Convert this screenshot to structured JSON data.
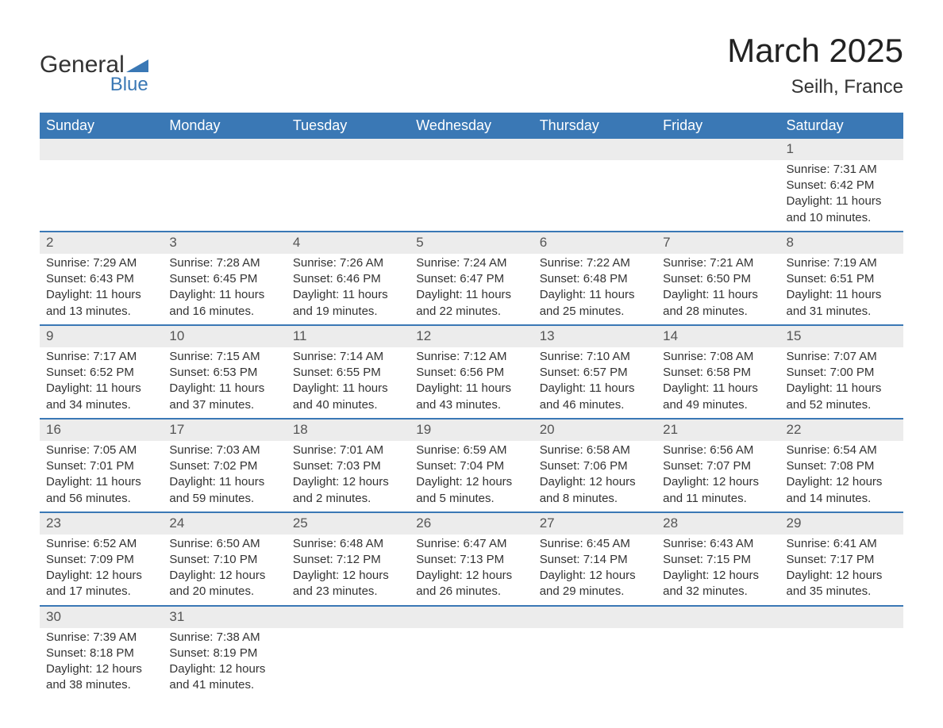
{
  "logo": {
    "text_general": "General",
    "text_blue": "Blue",
    "triangle_color": "#3a78b5"
  },
  "header": {
    "title": "March 2025",
    "subtitle": "Seilh, France"
  },
  "colors": {
    "header_bg": "#3a78b5",
    "header_text": "#ffffff",
    "daynum_bg": "#ececec",
    "border": "#3a78b5",
    "body_text": "#333333",
    "page_bg": "#ffffff"
  },
  "fonts": {
    "title_size_pt": 42,
    "subtitle_size_pt": 24,
    "dayhead_size_pt": 18,
    "cell_size_pt": 15,
    "family": "Arial"
  },
  "calendar": {
    "day_headers": [
      "Sunday",
      "Monday",
      "Tuesday",
      "Wednesday",
      "Thursday",
      "Friday",
      "Saturday"
    ],
    "weeks": [
      [
        null,
        null,
        null,
        null,
        null,
        null,
        {
          "n": "1",
          "sunrise": "Sunrise: 7:31 AM",
          "sunset": "Sunset: 6:42 PM",
          "day1": "Daylight: 11 hours",
          "day2": "and 10 minutes."
        }
      ],
      [
        {
          "n": "2",
          "sunrise": "Sunrise: 7:29 AM",
          "sunset": "Sunset: 6:43 PM",
          "day1": "Daylight: 11 hours",
          "day2": "and 13 minutes."
        },
        {
          "n": "3",
          "sunrise": "Sunrise: 7:28 AM",
          "sunset": "Sunset: 6:45 PM",
          "day1": "Daylight: 11 hours",
          "day2": "and 16 minutes."
        },
        {
          "n": "4",
          "sunrise": "Sunrise: 7:26 AM",
          "sunset": "Sunset: 6:46 PM",
          "day1": "Daylight: 11 hours",
          "day2": "and 19 minutes."
        },
        {
          "n": "5",
          "sunrise": "Sunrise: 7:24 AM",
          "sunset": "Sunset: 6:47 PM",
          "day1": "Daylight: 11 hours",
          "day2": "and 22 minutes."
        },
        {
          "n": "6",
          "sunrise": "Sunrise: 7:22 AM",
          "sunset": "Sunset: 6:48 PM",
          "day1": "Daylight: 11 hours",
          "day2": "and 25 minutes."
        },
        {
          "n": "7",
          "sunrise": "Sunrise: 7:21 AM",
          "sunset": "Sunset: 6:50 PM",
          "day1": "Daylight: 11 hours",
          "day2": "and 28 minutes."
        },
        {
          "n": "8",
          "sunrise": "Sunrise: 7:19 AM",
          "sunset": "Sunset: 6:51 PM",
          "day1": "Daylight: 11 hours",
          "day2": "and 31 minutes."
        }
      ],
      [
        {
          "n": "9",
          "sunrise": "Sunrise: 7:17 AM",
          "sunset": "Sunset: 6:52 PM",
          "day1": "Daylight: 11 hours",
          "day2": "and 34 minutes."
        },
        {
          "n": "10",
          "sunrise": "Sunrise: 7:15 AM",
          "sunset": "Sunset: 6:53 PM",
          "day1": "Daylight: 11 hours",
          "day2": "and 37 minutes."
        },
        {
          "n": "11",
          "sunrise": "Sunrise: 7:14 AM",
          "sunset": "Sunset: 6:55 PM",
          "day1": "Daylight: 11 hours",
          "day2": "and 40 minutes."
        },
        {
          "n": "12",
          "sunrise": "Sunrise: 7:12 AM",
          "sunset": "Sunset: 6:56 PM",
          "day1": "Daylight: 11 hours",
          "day2": "and 43 minutes."
        },
        {
          "n": "13",
          "sunrise": "Sunrise: 7:10 AM",
          "sunset": "Sunset: 6:57 PM",
          "day1": "Daylight: 11 hours",
          "day2": "and 46 minutes."
        },
        {
          "n": "14",
          "sunrise": "Sunrise: 7:08 AM",
          "sunset": "Sunset: 6:58 PM",
          "day1": "Daylight: 11 hours",
          "day2": "and 49 minutes."
        },
        {
          "n": "15",
          "sunrise": "Sunrise: 7:07 AM",
          "sunset": "Sunset: 7:00 PM",
          "day1": "Daylight: 11 hours",
          "day2": "and 52 minutes."
        }
      ],
      [
        {
          "n": "16",
          "sunrise": "Sunrise: 7:05 AM",
          "sunset": "Sunset: 7:01 PM",
          "day1": "Daylight: 11 hours",
          "day2": "and 56 minutes."
        },
        {
          "n": "17",
          "sunrise": "Sunrise: 7:03 AM",
          "sunset": "Sunset: 7:02 PM",
          "day1": "Daylight: 11 hours",
          "day2": "and 59 minutes."
        },
        {
          "n": "18",
          "sunrise": "Sunrise: 7:01 AM",
          "sunset": "Sunset: 7:03 PM",
          "day1": "Daylight: 12 hours",
          "day2": "and 2 minutes."
        },
        {
          "n": "19",
          "sunrise": "Sunrise: 6:59 AM",
          "sunset": "Sunset: 7:04 PM",
          "day1": "Daylight: 12 hours",
          "day2": "and 5 minutes."
        },
        {
          "n": "20",
          "sunrise": "Sunrise: 6:58 AM",
          "sunset": "Sunset: 7:06 PM",
          "day1": "Daylight: 12 hours",
          "day2": "and 8 minutes."
        },
        {
          "n": "21",
          "sunrise": "Sunrise: 6:56 AM",
          "sunset": "Sunset: 7:07 PM",
          "day1": "Daylight: 12 hours",
          "day2": "and 11 minutes."
        },
        {
          "n": "22",
          "sunrise": "Sunrise: 6:54 AM",
          "sunset": "Sunset: 7:08 PM",
          "day1": "Daylight: 12 hours",
          "day2": "and 14 minutes."
        }
      ],
      [
        {
          "n": "23",
          "sunrise": "Sunrise: 6:52 AM",
          "sunset": "Sunset: 7:09 PM",
          "day1": "Daylight: 12 hours",
          "day2": "and 17 minutes."
        },
        {
          "n": "24",
          "sunrise": "Sunrise: 6:50 AM",
          "sunset": "Sunset: 7:10 PM",
          "day1": "Daylight: 12 hours",
          "day2": "and 20 minutes."
        },
        {
          "n": "25",
          "sunrise": "Sunrise: 6:48 AM",
          "sunset": "Sunset: 7:12 PM",
          "day1": "Daylight: 12 hours",
          "day2": "and 23 minutes."
        },
        {
          "n": "26",
          "sunrise": "Sunrise: 6:47 AM",
          "sunset": "Sunset: 7:13 PM",
          "day1": "Daylight: 12 hours",
          "day2": "and 26 minutes."
        },
        {
          "n": "27",
          "sunrise": "Sunrise: 6:45 AM",
          "sunset": "Sunset: 7:14 PM",
          "day1": "Daylight: 12 hours",
          "day2": "and 29 minutes."
        },
        {
          "n": "28",
          "sunrise": "Sunrise: 6:43 AM",
          "sunset": "Sunset: 7:15 PM",
          "day1": "Daylight: 12 hours",
          "day2": "and 32 minutes."
        },
        {
          "n": "29",
          "sunrise": "Sunrise: 6:41 AM",
          "sunset": "Sunset: 7:17 PM",
          "day1": "Daylight: 12 hours",
          "day2": "and 35 minutes."
        }
      ],
      [
        {
          "n": "30",
          "sunrise": "Sunrise: 7:39 AM",
          "sunset": "Sunset: 8:18 PM",
          "day1": "Daylight: 12 hours",
          "day2": "and 38 minutes."
        },
        {
          "n": "31",
          "sunrise": "Sunrise: 7:38 AM",
          "sunset": "Sunset: 8:19 PM",
          "day1": "Daylight: 12 hours",
          "day2": "and 41 minutes."
        },
        null,
        null,
        null,
        null,
        null
      ]
    ]
  }
}
